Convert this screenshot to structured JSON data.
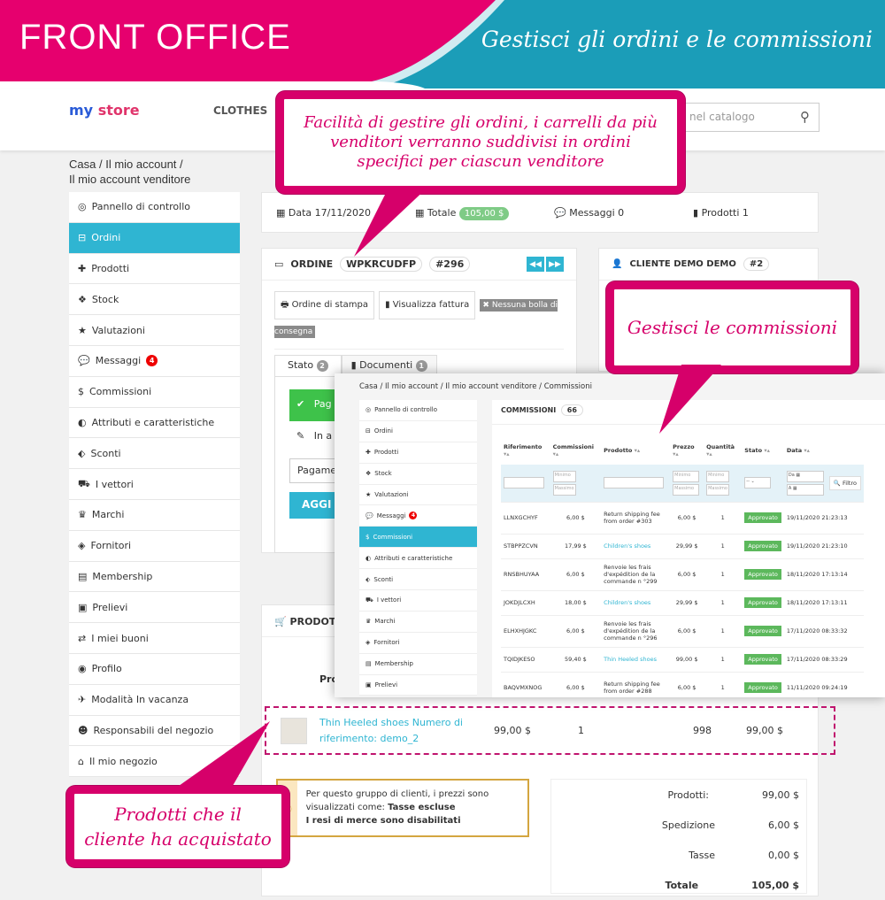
{
  "banner": {
    "left": "FRONT OFFICE",
    "right": "Gestisci gli ordini e le commissioni",
    "pink": "#e6006e",
    "teal": "#1b9db8"
  },
  "store": {
    "logo_a": "my",
    "logo_b": "store",
    "menu": "CLOTHES",
    "search_placeholder": "nel catalogo",
    "search_icon": "search-icon"
  },
  "breadcrumb": [
    "Casa",
    "Il mio account",
    "Il mio account venditore"
  ],
  "sidebar": [
    {
      "label": "Pannello di controllo",
      "icon": "tachometer"
    },
    {
      "label": "Ordini",
      "icon": "basket",
      "active": true
    },
    {
      "label": "Prodotti",
      "icon": "gift"
    },
    {
      "label": "Stock",
      "icon": "cubes"
    },
    {
      "label": "Valutazioni",
      "icon": "star"
    },
    {
      "label": "Messaggi",
      "icon": "comment",
      "badge": "4"
    },
    {
      "label": "Commissioni",
      "icon": "dollar"
    },
    {
      "label": "Attributi e caratteristiche",
      "icon": "adjust"
    },
    {
      "label": "Sconti",
      "icon": "tag"
    },
    {
      "label": "I vettori",
      "icon": "truck"
    },
    {
      "label": "Marchi",
      "icon": "trophy"
    },
    {
      "label": "Fornitori",
      "icon": "cube"
    },
    {
      "label": "Membership",
      "icon": "card"
    },
    {
      "label": "Prelievi",
      "icon": "money"
    },
    {
      "label": "I miei buoni",
      "icon": "exchange"
    },
    {
      "label": "Profilo",
      "icon": "user"
    },
    {
      "label": "Modalità In vacanza",
      "icon": "plane"
    },
    {
      "label": "Responsabili del negozio",
      "icon": "users"
    },
    {
      "label": "Il mio negozio",
      "icon": "home"
    }
  ],
  "stats": {
    "date": "Data 17/11/2020",
    "total_label": "Totale",
    "total": "105,00 $",
    "messages": "Messaggi 0",
    "products": "Prodotti 1"
  },
  "order": {
    "title": "ORDINE",
    "reference": "WPKRCUDFP",
    "id": "#296",
    "print": "Ordine di stampa",
    "invoice": "Visualizza fattura",
    "no_delivery": "Nessuna bolla di consegna",
    "tab_status": "Stato",
    "tab_status_count": "2",
    "tab_docs": "Documenti",
    "tab_docs_count": "1",
    "status_paid": "Pag",
    "status_waiting": "In a",
    "payment_select": "Pagamen",
    "update_btn": "AGGI"
  },
  "customer": {
    "title": "CLIENTE DEMO DEMO",
    "id": "#2"
  },
  "products": {
    "title": "PRODOTTI",
    "col": "Prod",
    "row": {
      "name": "Thin Heeled shoes Numero di riferimento: demo_2",
      "price": "99,00 $",
      "qty": "1",
      "stock": "998",
      "total": "99,00 $"
    }
  },
  "note": {
    "line1": "Per questo gruppo di clienti, i prezzi sono visualizzati come:",
    "bold1": "Tasse escluse",
    "line2": "I resi di merce sono disabilitati"
  },
  "totals": [
    {
      "label": "Prodotti:",
      "value": "99,00 $"
    },
    {
      "label": "Spedizione",
      "value": "6,00 $"
    },
    {
      "label": "Tasse",
      "value": "0,00 $"
    },
    {
      "label": "Totale",
      "value": "105,00 $"
    }
  ],
  "overlay": {
    "breadcrumb": "Casa  /  Il mio account  /  Il mio account venditore  /  Commissioni",
    "sidebar": [
      {
        "label": "Pannello di controllo"
      },
      {
        "label": "Ordini"
      },
      {
        "label": "Prodotti"
      },
      {
        "label": "Stock"
      },
      {
        "label": "Valutazioni"
      },
      {
        "label": "Messaggi",
        "badge": "4"
      },
      {
        "label": "Commissioni",
        "active": true
      },
      {
        "label": "Attributi e caratteristiche"
      },
      {
        "label": "Sconti"
      },
      {
        "label": "I vettori"
      },
      {
        "label": "Marchi"
      },
      {
        "label": "Fornitori"
      },
      {
        "label": "Membership"
      },
      {
        "label": "Prelievi"
      }
    ],
    "title": "COMMISSIONI",
    "count": "66",
    "headers": [
      "Riferimento",
      "Commissioni",
      "Prodotto",
      "Prezzo",
      "Quantità",
      "Stato",
      "Data"
    ],
    "filter": {
      "min": "Minimo",
      "max": "Massimo",
      "select": "--",
      "from": "Da",
      "to": "A",
      "button": "Filtro"
    },
    "rows": [
      {
        "ref": "LLNXGCHYF",
        "comm": "6,00 $",
        "product": "Return shipping fee from order #303",
        "link": false,
        "price": "6,00 $",
        "qty": "1",
        "status": "Approvato",
        "date": "19/11/2020 21:23:13"
      },
      {
        "ref": "STBPPZCVN",
        "comm": "17,99 $",
        "product": "Children's shoes",
        "link": true,
        "price": "29,99 $",
        "qty": "1",
        "status": "Approvato",
        "date": "19/11/2020 21:23:10"
      },
      {
        "ref": "RNSBHUYAA",
        "comm": "6,00 $",
        "product": "Renvoie les frais d'expédition de la commande n °299",
        "link": false,
        "price": "6,00 $",
        "qty": "1",
        "status": "Approvato",
        "date": "18/11/2020 17:13:14"
      },
      {
        "ref": "JOKDJLCXH",
        "comm": "18,00 $",
        "product": "Children's shoes",
        "link": true,
        "price": "29,99 $",
        "qty": "1",
        "status": "Approvato",
        "date": "18/11/2020 17:13:11"
      },
      {
        "ref": "ELHXHJGKC",
        "comm": "6,00 $",
        "product": "Renvoie les frais d'expédition de la commande n °296",
        "link": false,
        "price": "6,00 $",
        "qty": "1",
        "status": "Approvato",
        "date": "17/11/2020 08:33:32"
      },
      {
        "ref": "TQIDJKESO",
        "comm": "59,40 $",
        "product": "Thin Heeled shoes",
        "link": true,
        "price": "99,00 $",
        "qty": "1",
        "status": "Approvato",
        "date": "17/11/2020 08:33:29"
      },
      {
        "ref": "BAQVMXNOG",
        "comm": "6,00 $",
        "product": "Return shipping fee from order #288",
        "link": false,
        "price": "6,00 $",
        "qty": "1",
        "status": "Approvato",
        "date": "11/11/2020 09:24:19"
      }
    ]
  },
  "callouts": {
    "top": "Facilità di gestire gli ordini, i carrelli da più venditori verranno suddivisi in ordini specifici per ciascun venditore",
    "commissions": "Gestisci le commissioni",
    "products": "Prodotti che il cliente ha acquistato"
  }
}
